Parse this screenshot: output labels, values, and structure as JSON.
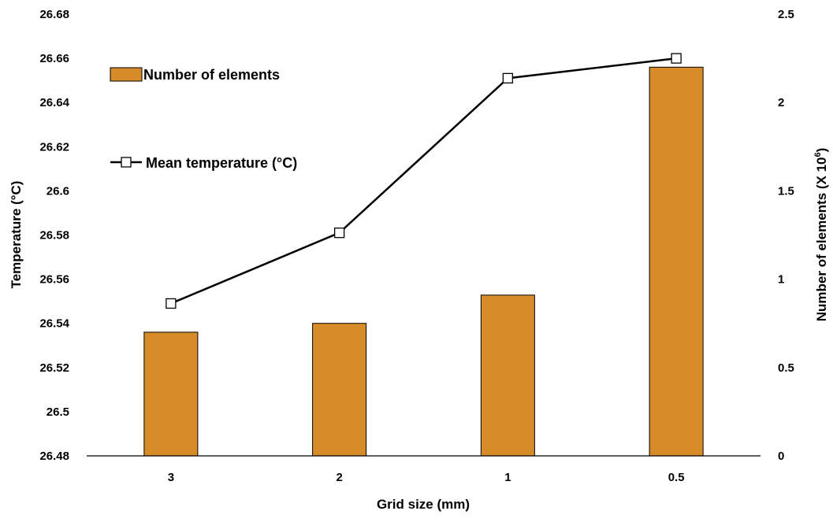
{
  "chart_data": {
    "type": "bar",
    "xlabel": "Grid size (mm)",
    "ylabel": "Temperature (°C)",
    "y2label": "Number of elements (X 10",
    "y2label_sup": "6",
    "y2label_close": ")",
    "categories": [
      "3",
      "2",
      "1",
      "0.5"
    ],
    "ylim": [
      26.48,
      26.68
    ],
    "yticks": [
      "26.48",
      "26.5",
      "26.52",
      "26.54",
      "26.56",
      "26.58",
      "26.6",
      "26.62",
      "26.64",
      "26.66",
      "26.68"
    ],
    "y2lim": [
      0,
      2.5
    ],
    "y2ticks": [
      "0",
      "0.5",
      "1",
      "1.5",
      "2",
      "2.5"
    ],
    "series": [
      {
        "name": "Number of elements",
        "type": "bar",
        "axis": "right",
        "color": "#D68C29",
        "values": [
          0.7,
          0.75,
          0.91,
          2.2
        ]
      },
      {
        "name": "Mean temperature (°C)",
        "type": "line",
        "axis": "left",
        "color": "#000000",
        "marker": "open-square",
        "values": [
          26.549,
          26.581,
          26.651,
          26.66
        ]
      }
    ],
    "legend": "top-left",
    "grid": false
  }
}
